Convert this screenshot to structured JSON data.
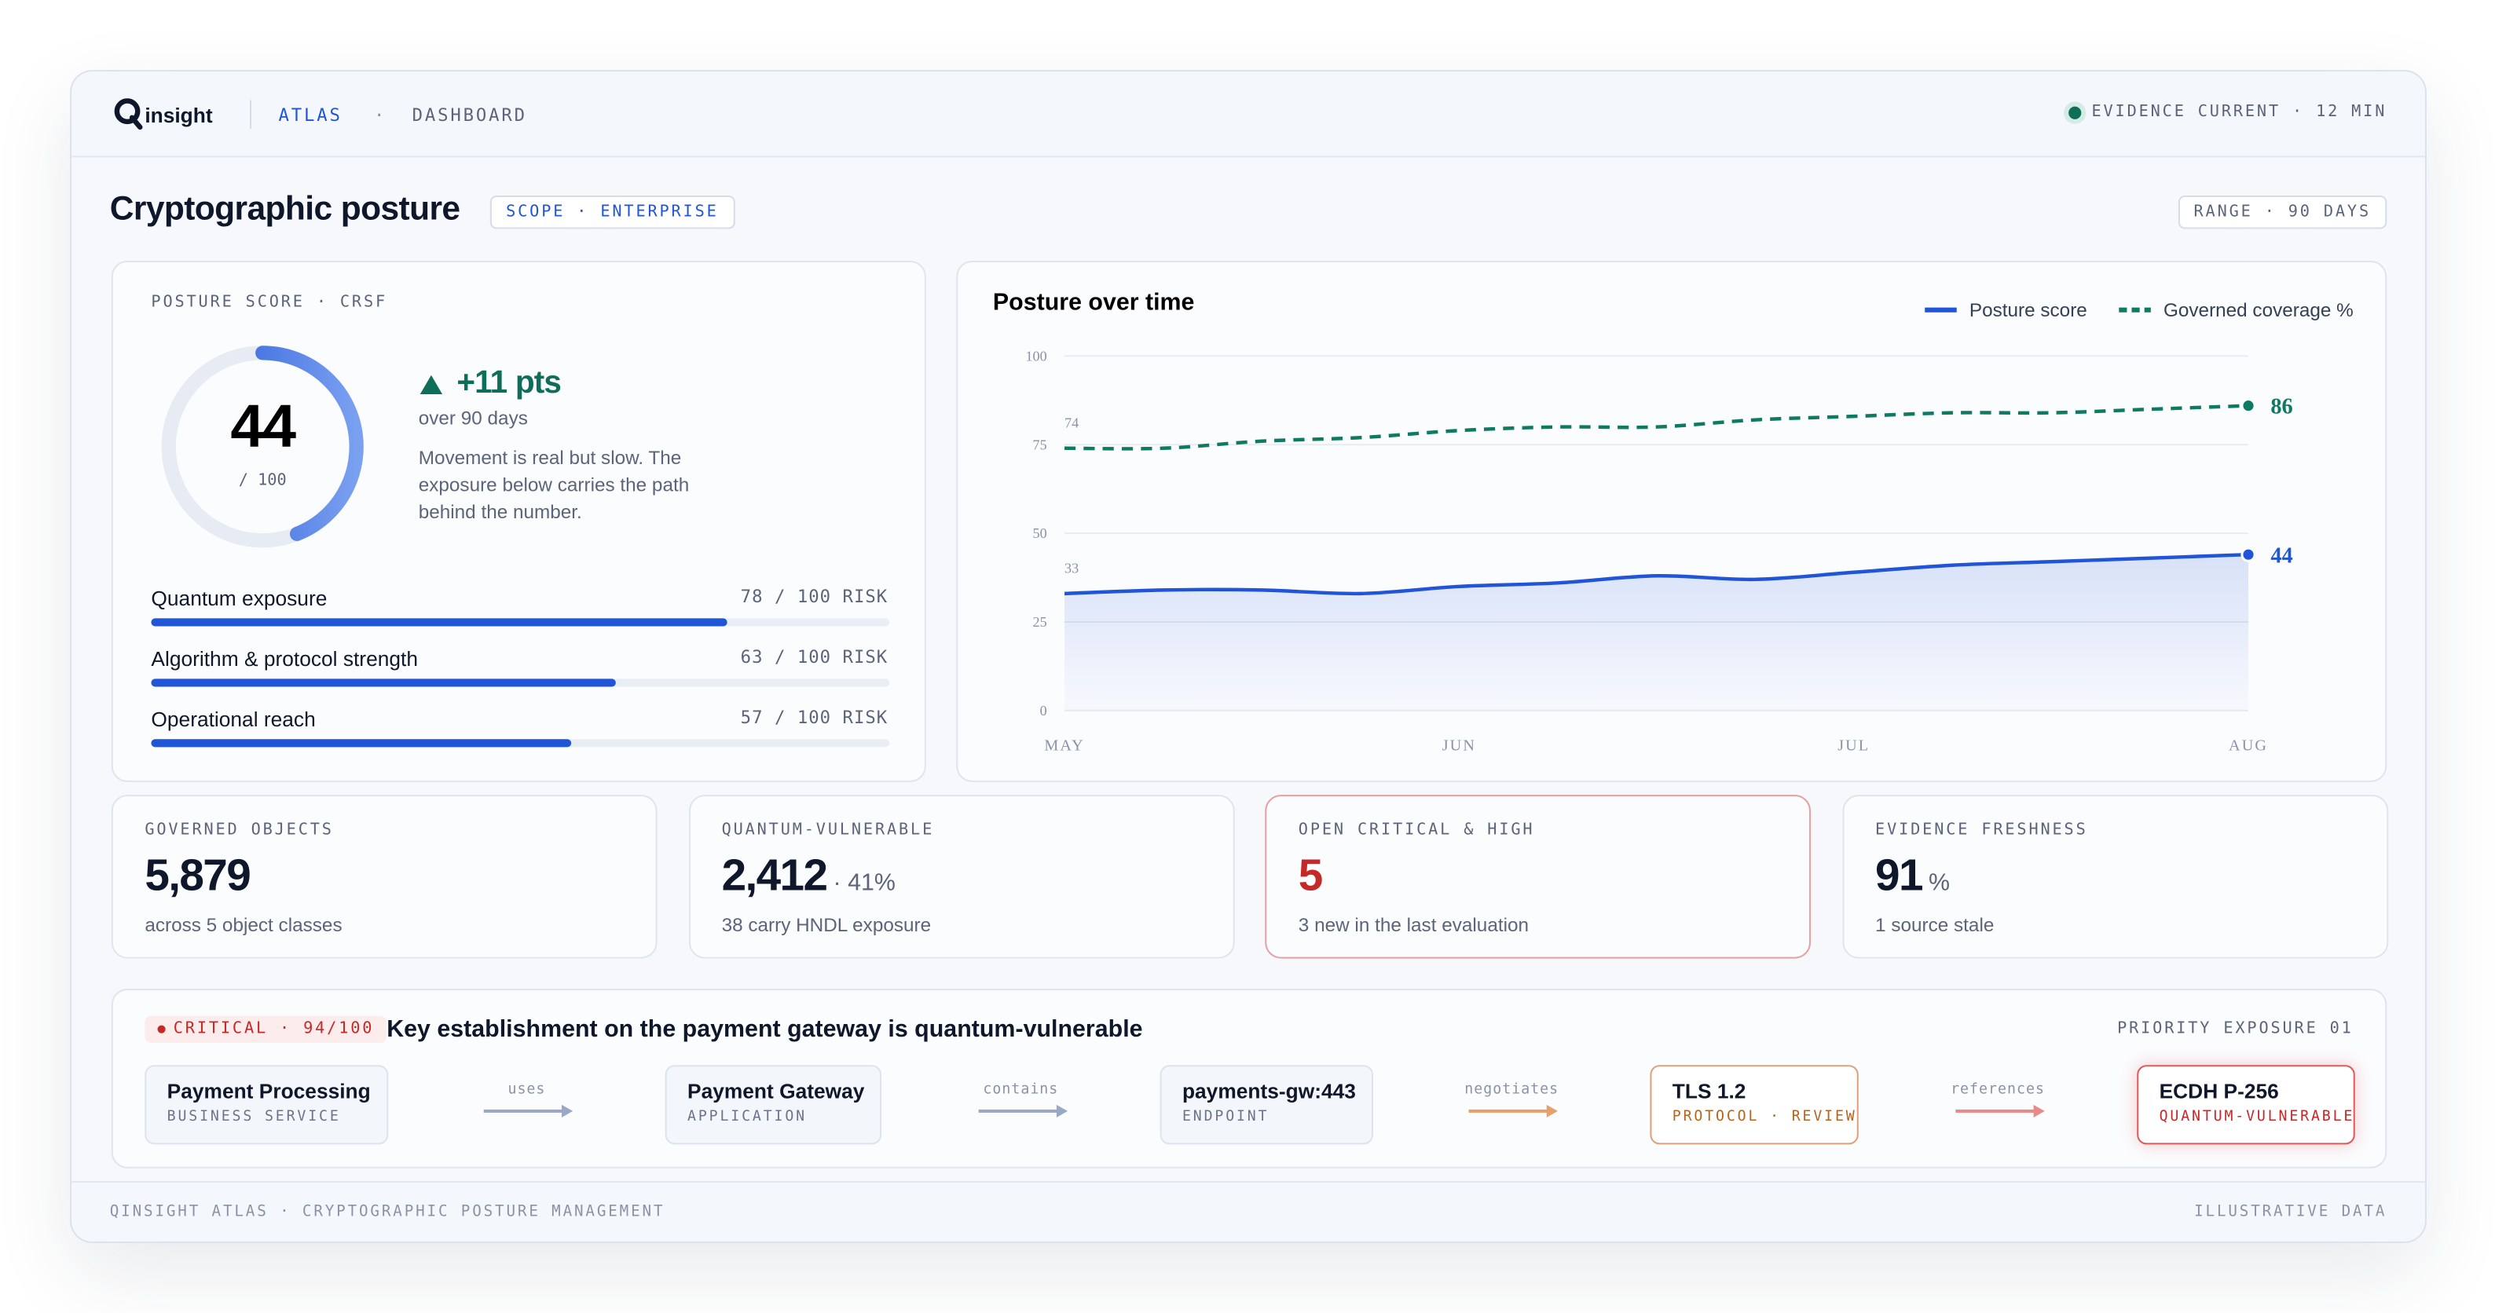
{
  "header": {
    "brand": "insight",
    "nav": [
      "ATLAS",
      "DASHBOARD"
    ],
    "nav_separator": "·",
    "status": "EVIDENCE CURRENT · 12 MIN"
  },
  "page": {
    "title": "Cryptographic posture",
    "scope": "SCOPE · ENTERPRISE",
    "range": "RANGE · 90 DAYS"
  },
  "posture": {
    "label": "POSTURE SCORE · CRSF",
    "score": 44,
    "score_max": {
      "value": 100,
      "label": "/ 100"
    },
    "delta": "+11 pts",
    "delta_period": "over 90 days",
    "description": "Movement is real but slow. The exposure below carries the path behind the number.",
    "risks": [
      {
        "name": "Quantum exposure",
        "value": 78,
        "label": "78 / 100 RISK"
      },
      {
        "name": "Algorithm & protocol strength",
        "value": 63,
        "label": "63 / 100 RISK"
      },
      {
        "name": "Operational reach",
        "value": 57,
        "label": "57 / 100 RISK"
      }
    ]
  },
  "chart_data": {
    "type": "line",
    "title": "Posture over time",
    "categories": [
      "MAY",
      null,
      null,
      null,
      "JUN",
      null,
      null,
      null,
      "JUL",
      null,
      null,
      null,
      "AUG"
    ],
    "series": [
      {
        "name": "Posture score",
        "color": "#1f55d6",
        "area": true,
        "values": [
          33,
          34,
          34,
          33,
          35,
          36,
          38,
          37,
          39,
          41,
          42,
          43,
          44
        ]
      },
      {
        "name": "Governed coverage %",
        "color": "#0f7a63",
        "dashed": true,
        "values": [
          74,
          74,
          76,
          77,
          79,
          80,
          80,
          82,
          83,
          84,
          84,
          85,
          86
        ]
      }
    ],
    "ylim": [
      0,
      100
    ],
    "yticks": [
      0,
      25,
      50,
      75,
      100
    ],
    "grid": true,
    "legend": "top-right"
  },
  "kpis": [
    {
      "label": "GOVERNED OBJECTS",
      "value": "5,879",
      "note": "across 5 object classes"
    },
    {
      "label": "QUANTUM-VULNERABLE",
      "value": "2,412",
      "suffix": "· 41%",
      "note": "38 carry HNDL exposure"
    },
    {
      "label": "OPEN CRITICAL & HIGH",
      "value": "5",
      "note": "3 new in the last evaluation"
    },
    {
      "label": "EVIDENCE FRESHNESS",
      "value": "91",
      "suffix": "%",
      "note": "1 source stale"
    }
  ],
  "exposure": {
    "badge": "CRITICAL · 94/100",
    "title": "Key establishment on the payment gateway is quantum-vulnerable",
    "priority": "PRIORITY EXPOSURE 01",
    "nodes": [
      {
        "name": "Payment Processing",
        "type": "BUSINESS SERVICE"
      },
      {
        "name": "Payment Gateway",
        "type": "APPLICATION"
      },
      {
        "name": "payments-gw:443",
        "type": "ENDPOINT"
      },
      {
        "name": "TLS 1.2",
        "type": "PROTOCOL · REVIEW"
      },
      {
        "name": "ECDH P-256",
        "type": "QUANTUM-VULNERABLE"
      }
    ],
    "edges": [
      "uses",
      "contains",
      "negotiates",
      "references"
    ]
  },
  "footer": {
    "left": "QINSIGHT ATLAS · CRYPTOGRAPHIC POSTURE MANAGEMENT",
    "right": "ILLUSTRATIVE DATA"
  }
}
